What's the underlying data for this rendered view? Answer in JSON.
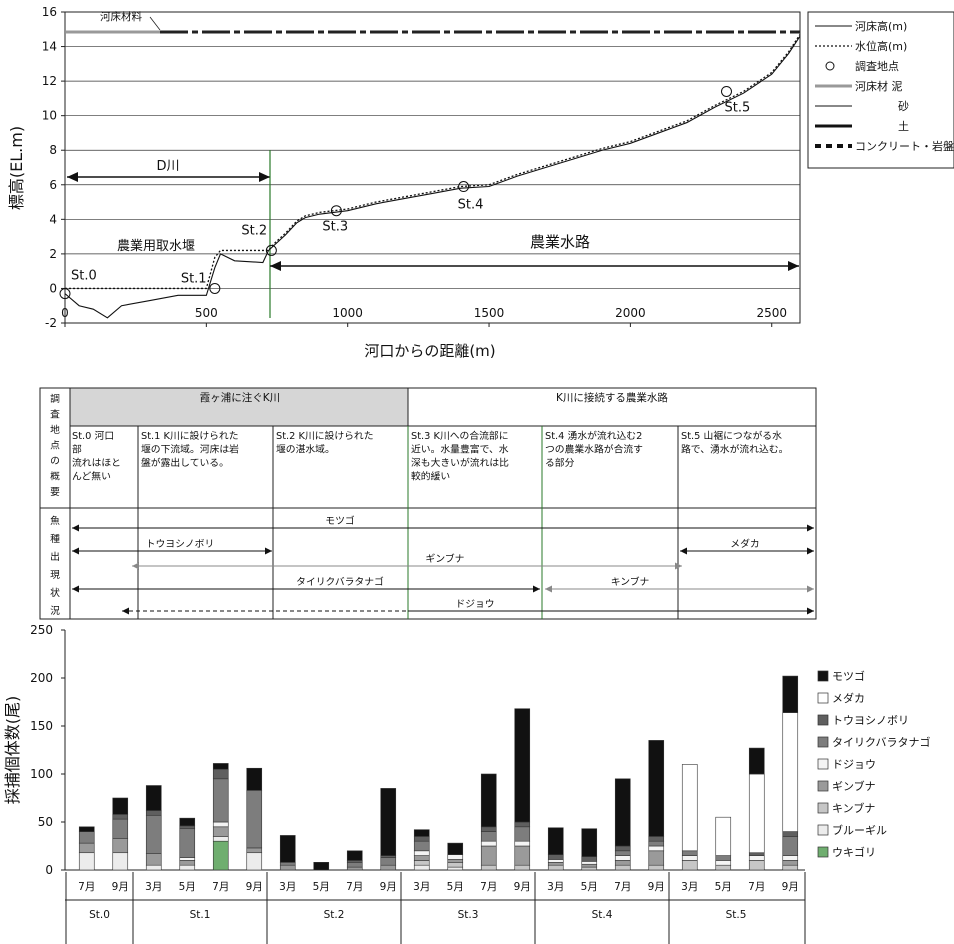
{
  "chart_data": [
    {
      "type": "line",
      "xlabel": "河口からの距離(m)",
      "ylabel": "標高(EL.m)",
      "xlim": [
        0,
        2600
      ],
      "ylim": [
        -2,
        16
      ],
      "xticks": [
        0,
        500,
        1000,
        1500,
        2000,
        2500
      ],
      "yticks": [
        -2,
        0,
        2,
        4,
        6,
        8,
        10,
        12,
        14,
        16
      ],
      "grid": true,
      "legend": {
        "position": "right",
        "entries": [
          "河床高(m)",
          "水位高(m)",
          "調査地点",
          "河床材 泥",
          "砂",
          "土",
          "コンクリート・岩盤"
        ]
      },
      "series": [
        {
          "name": "河床高(m)",
          "x": [
            0,
            50,
            100,
            150,
            200,
            300,
            400,
            500,
            530,
            550,
            600,
            700,
            720,
            740,
            780,
            820,
            850,
            900,
            950,
            1000,
            1100,
            1200,
            1300,
            1400,
            1500,
            1600,
            1700,
            1800,
            1900,
            2000,
            2100,
            2200,
            2300,
            2400,
            2500,
            2560,
            2600
          ],
          "y": [
            -0.3,
            -1.0,
            -1.2,
            -1.7,
            -1.0,
            -0.7,
            -0.4,
            -0.4,
            1.2,
            2.0,
            1.6,
            1.5,
            2.2,
            2.5,
            3.1,
            3.8,
            4.1,
            4.3,
            4.4,
            4.5,
            4.9,
            5.2,
            5.5,
            5.8,
            5.9,
            6.5,
            7.0,
            7.5,
            8.0,
            8.4,
            9.0,
            9.6,
            10.5,
            11.3,
            12.4,
            13.6,
            14.6
          ]
        },
        {
          "name": "水位高(m)",
          "x": [
            0,
            500,
            530,
            550,
            720,
            740,
            780,
            820,
            850,
            900,
            950,
            1000,
            1100,
            1200,
            1300,
            1400,
            1500,
            1600,
            1700,
            1800,
            1900,
            2000,
            2100,
            2200,
            2300,
            2400,
            2500,
            2560,
            2600
          ],
          "y": [
            0.0,
            0.0,
            1.8,
            2.2,
            2.2,
            2.6,
            3.2,
            3.9,
            4.2,
            4.4,
            4.5,
            4.6,
            5.0,
            5.3,
            5.6,
            5.9,
            6.0,
            6.6,
            7.1,
            7.6,
            8.1,
            8.5,
            9.1,
            9.7,
            10.6,
            11.4,
            12.5,
            13.7,
            14.7
          ]
        }
      ],
      "stations": [
        {
          "label": "St.0",
          "x": 0,
          "y": -0.3
        },
        {
          "label": "St.1",
          "x": 530,
          "y": 0.0
        },
        {
          "label": "St.2",
          "x": 730,
          "y": 2.2
        },
        {
          "label": "St.3",
          "x": 960,
          "y": 4.5
        },
        {
          "label": "St.4",
          "x": 1410,
          "y": 5.9
        },
        {
          "label": "St.5",
          "x": 2340,
          "y": 11.4
        }
      ],
      "bed_material": {
        "label": "河床材料",
        "y": 15
      },
      "annotations": {
        "river": "D川",
        "weir": "農業用取水堰",
        "canal": "農業水路"
      }
    },
    {
      "type": "table",
      "row_headers": [
        "調査地点の概要",
        "魚種出現状況"
      ],
      "groups": [
        "霞ヶ浦に注ぐK川",
        "K川に接続する農業水路"
      ],
      "descriptions": [
        [
          "St.0 河口",
          "部",
          "流れはほと",
          "んど無い"
        ],
        [
          "St.1 K川に設けられた",
          "堰の下流域。河床は岩",
          "盤が露出している。"
        ],
        [
          "St.2 K川に設けられた",
          "堰の湛水域。"
        ],
        [
          "St.3 K川への合流部に",
          "近い。水量豊富で、水",
          "深も大きいが流れは比",
          "較的緩い"
        ],
        [
          "St.4 湧水が流れ込む2",
          "つの農業水路が合流す",
          "る部分"
        ],
        [
          "St.5 山裾につながる水",
          "路で、湧水が流れ込む。"
        ]
      ],
      "species_ranges": [
        {
          "name": "モツゴ",
          "from": 0,
          "to": 5
        },
        {
          "name": "トウヨシノボリ",
          "from": 0,
          "to": 1
        },
        {
          "name": "メダカ",
          "from": 5,
          "to": 5
        },
        {
          "name": "ギンブナ",
          "from": 0.5,
          "to": 4.5
        },
        {
          "name": "タイリクバラタナゴ",
          "from": 0,
          "to": 3
        },
        {
          "name": "キンブナ",
          "from": 3.5,
          "to": 5
        },
        {
          "name": "ドジョウ",
          "from": 0.3,
          "to": 5
        }
      ]
    },
    {
      "type": "bar",
      "stacked": true,
      "ylabel": "採捕個体数(尾)",
      "ylim": [
        0,
        250
      ],
      "yticks": [
        0,
        50,
        100,
        150,
        200,
        250
      ],
      "groups": [
        {
          "station": "St.0",
          "months": [
            "7月",
            "9月"
          ]
        },
        {
          "station": "St.1",
          "months": [
            "3月",
            "5月",
            "7月",
            "9月"
          ]
        },
        {
          "station": "St.2",
          "months": [
            "3月",
            "5月",
            "7月",
            "9月"
          ]
        },
        {
          "station": "St.3",
          "months": [
            "3月",
            "5月",
            "7月",
            "9月"
          ]
        },
        {
          "station": "St.4",
          "months": [
            "3月",
            "5月",
            "7月",
            "9月"
          ]
        },
        {
          "station": "St.5",
          "months": [
            "3月",
            "5月",
            "7月",
            "9月"
          ]
        }
      ],
      "categories": [
        "St.0 7月",
        "St.0 9月",
        "St.1 3月",
        "St.1 5月",
        "St.1 7月",
        "St.1 9月",
        "St.2 3月",
        "St.2 5月",
        "St.2 7月",
        "St.2 9月",
        "St.3 3月",
        "St.3 5月",
        "St.3 7月",
        "St.3 9月",
        "St.4 3月",
        "St.4 5月",
        "St.4 7月",
        "St.4 9月",
        "St.5 3月",
        "St.5 5月",
        "St.5 7月",
        "St.5 9月"
      ],
      "series": [
        {
          "name": "ウキゴリ",
          "color": "#6fae6f",
          "values": [
            0,
            0,
            0,
            0,
            30,
            0,
            0,
            0,
            0,
            0,
            0,
            0,
            0,
            0,
            0,
            0,
            0,
            0,
            0,
            0,
            0,
            0
          ]
        },
        {
          "name": "ブルーギル",
          "color": "#ececec",
          "values": [
            18,
            18,
            5,
            5,
            5,
            18,
            0,
            0,
            0,
            0,
            5,
            3,
            0,
            0,
            0,
            0,
            0,
            0,
            0,
            0,
            0,
            0
          ]
        },
        {
          "name": "キンブナ",
          "color": "#c6c6c6",
          "values": [
            0,
            0,
            0,
            0,
            0,
            0,
            0,
            0,
            0,
            0,
            5,
            5,
            5,
            5,
            5,
            3,
            5,
            5,
            10,
            5,
            10,
            5
          ]
        },
        {
          "name": "ギンブナ",
          "color": "#9a9a9a",
          "values": [
            10,
            15,
            12,
            5,
            10,
            5,
            5,
            0,
            3,
            5,
            5,
            3,
            20,
            20,
            3,
            3,
            5,
            15,
            0,
            0,
            0,
            5
          ]
        },
        {
          "name": "ドジョウ",
          "color": "#f4f4f4",
          "values": [
            0,
            0,
            0,
            3,
            5,
            0,
            0,
            0,
            0,
            0,
            5,
            5,
            5,
            5,
            3,
            3,
            5,
            5,
            5,
            5,
            5,
            5
          ]
        },
        {
          "name": "タイリクバラタナゴ",
          "color": "#7d7d7d",
          "values": [
            12,
            20,
            40,
            30,
            45,
            60,
            3,
            0,
            5,
            8,
            10,
            0,
            10,
            15,
            0,
            0,
            5,
            5,
            5,
            5,
            0,
            20
          ]
        },
        {
          "name": "トウヨシノボリ",
          "color": "#5f5f5f",
          "values": [
            0,
            5,
            5,
            3,
            10,
            0,
            0,
            0,
            2,
            2,
            5,
            0,
            5,
            5,
            5,
            5,
            5,
            5,
            0,
            0,
            3,
            5
          ]
        },
        {
          "name": "メダカ",
          "color": "#ffffff",
          "values": [
            0,
            0,
            0,
            0,
            0,
            0,
            0,
            0,
            0,
            0,
            0,
            0,
            0,
            0,
            0,
            0,
            0,
            0,
            90,
            40,
            82,
            124
          ]
        },
        {
          "name": "モツゴ",
          "color": "#111111",
          "values": [
            5,
            17,
            26,
            8,
            6,
            23,
            28,
            8,
            10,
            70,
            7,
            12,
            55,
            118,
            28,
            29,
            70,
            100,
            0,
            0,
            27,
            38
          ]
        }
      ],
      "legend": {
        "position": "right"
      }
    }
  ]
}
